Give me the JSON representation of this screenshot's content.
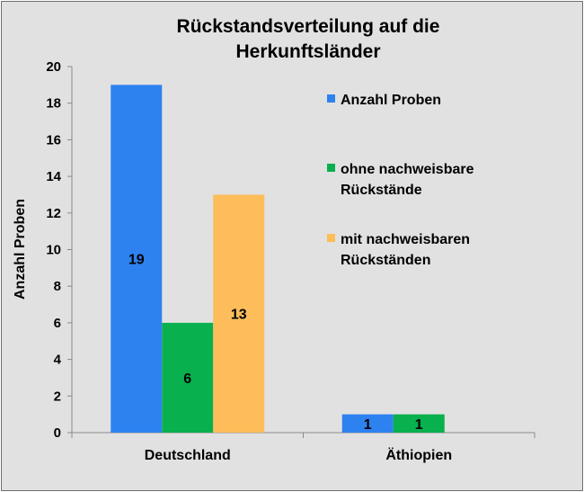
{
  "chart_data": {
    "type": "bar",
    "title_lines": [
      "Rückstandsverteilung auf die",
      "Herkunftsländer"
    ],
    "xlabel": "",
    "ylabel": "Anzahl Proben",
    "categories": [
      "Deutschland",
      "Äthiopien"
    ],
    "series": [
      {
        "name": "Anzahl Proben",
        "values": [
          19,
          1
        ],
        "color": "#2e82f0"
      },
      {
        "name": "ohne nachweisbare|Rückstände",
        "values": [
          6,
          1
        ],
        "color": "#09b04e"
      },
      {
        "name": "mit nachweisbaren|Rückständen",
        "values": [
          13,
          null
        ],
        "color": "#fcbd5a"
      }
    ],
    "data_labels": [
      [
        "19",
        "6",
        "13"
      ],
      [
        "1",
        "1",
        ""
      ]
    ],
    "ylim": [
      0,
      20
    ],
    "yticks": [
      0,
      2,
      4,
      6,
      8,
      10,
      12,
      14,
      16,
      18,
      20
    ],
    "grid": false,
    "legend_position": "right"
  },
  "colors": {
    "background": "#e1e1e1",
    "axis": "#8a8a8a"
  }
}
